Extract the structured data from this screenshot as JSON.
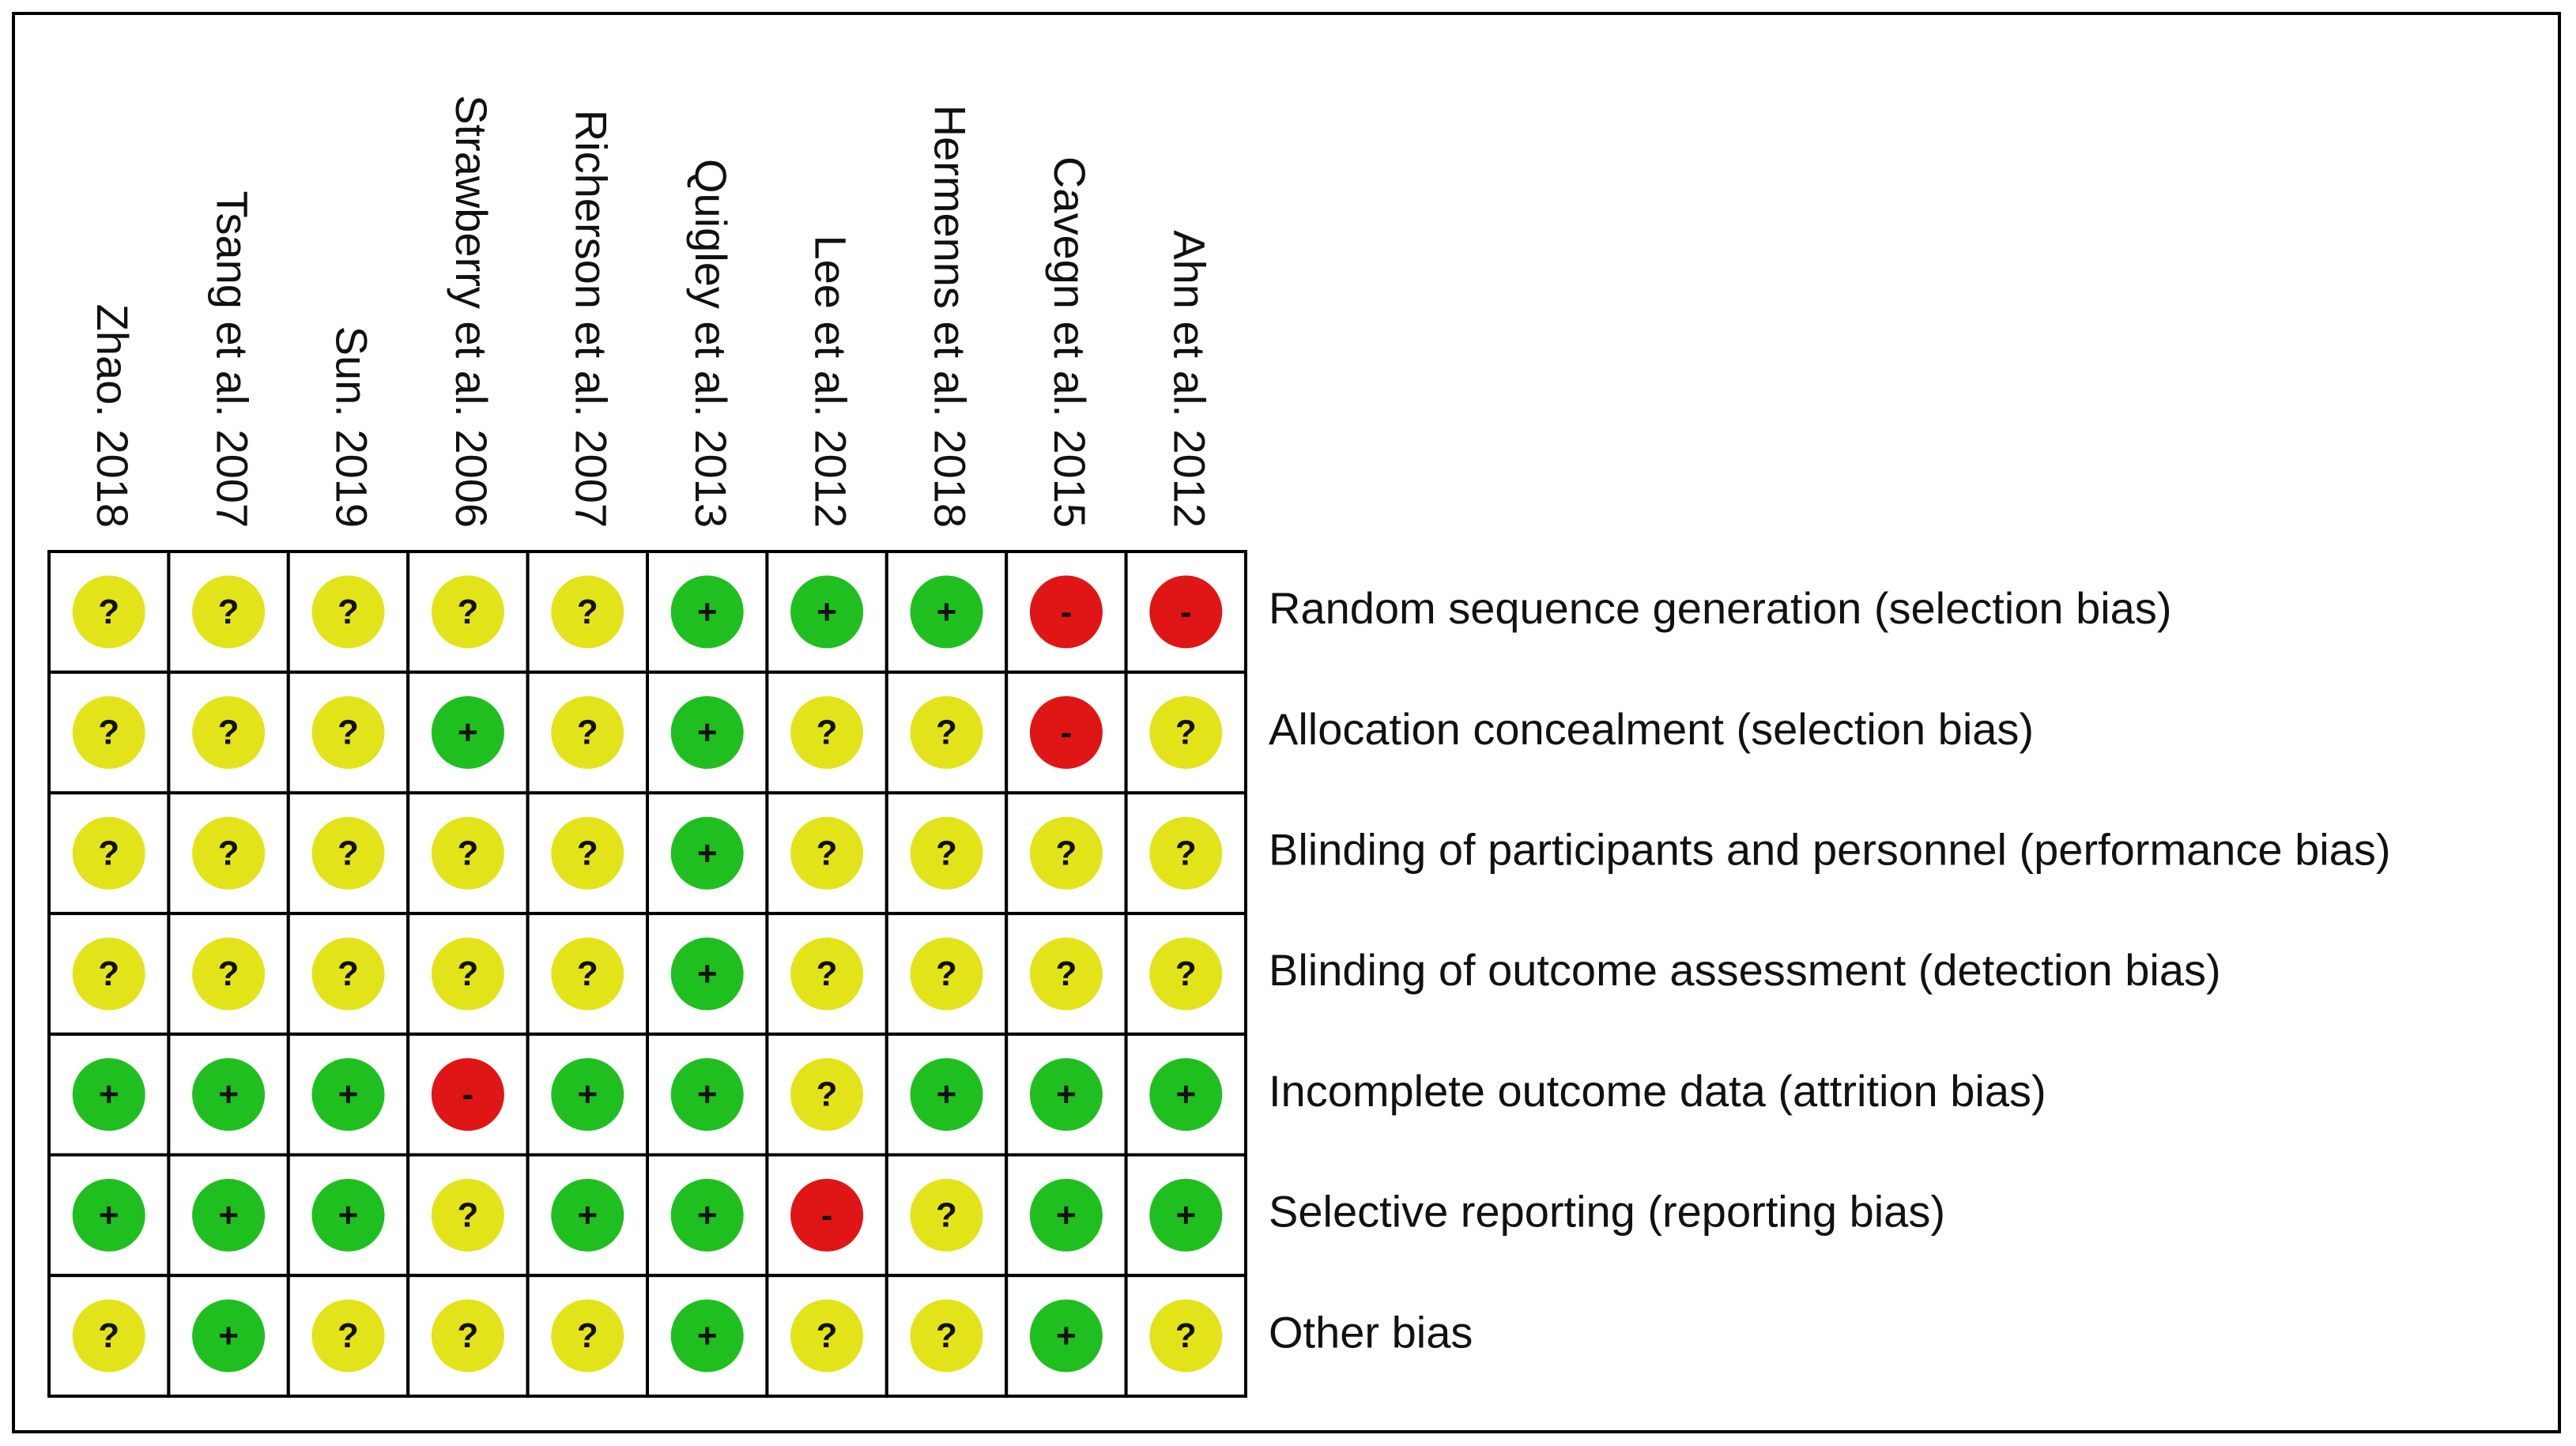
{
  "studies": [
    "Zhao. 2018",
    "Tsang et al. 2007",
    "Sun. 2019",
    "Strawberry et al. 2006",
    "Richerson et al. 2007",
    "Quigley et al. 2013",
    "Lee et al. 2012",
    "Hermenns et al. 2018",
    "Cavegn et al. 2015",
    "Ahn et al. 2012"
  ],
  "domains": [
    "Random sequence generation (selection bias)",
    "Allocation concealment (selection bias)",
    "Blinding of participants and personnel (performance bias)",
    "Blinding of outcome assessment (detection bias)",
    "Incomplete outcome data (attrition bias)",
    "Selective reporting (reporting bias)",
    "Other bias"
  ],
  "judgments": [
    [
      "?",
      "?",
      "?",
      "?",
      "?",
      "+",
      "+",
      "+",
      "-",
      "-"
    ],
    [
      "?",
      "?",
      "?",
      "+",
      "?",
      "+",
      "?",
      "?",
      "-",
      "?"
    ],
    [
      "?",
      "?",
      "?",
      "?",
      "?",
      "+",
      "?",
      "?",
      "?",
      "?"
    ],
    [
      "?",
      "?",
      "?",
      "?",
      "?",
      "+",
      "?",
      "?",
      "?",
      "?"
    ],
    [
      "+",
      "+",
      "+",
      "-",
      "+",
      "+",
      "?",
      "+",
      "+",
      "+"
    ],
    [
      "+",
      "+",
      "+",
      "?",
      "+",
      "+",
      "-",
      "?",
      "+",
      "+"
    ],
    [
      "?",
      "+",
      "?",
      "?",
      "?",
      "+",
      "?",
      "?",
      "+",
      "?"
    ]
  ]
}
